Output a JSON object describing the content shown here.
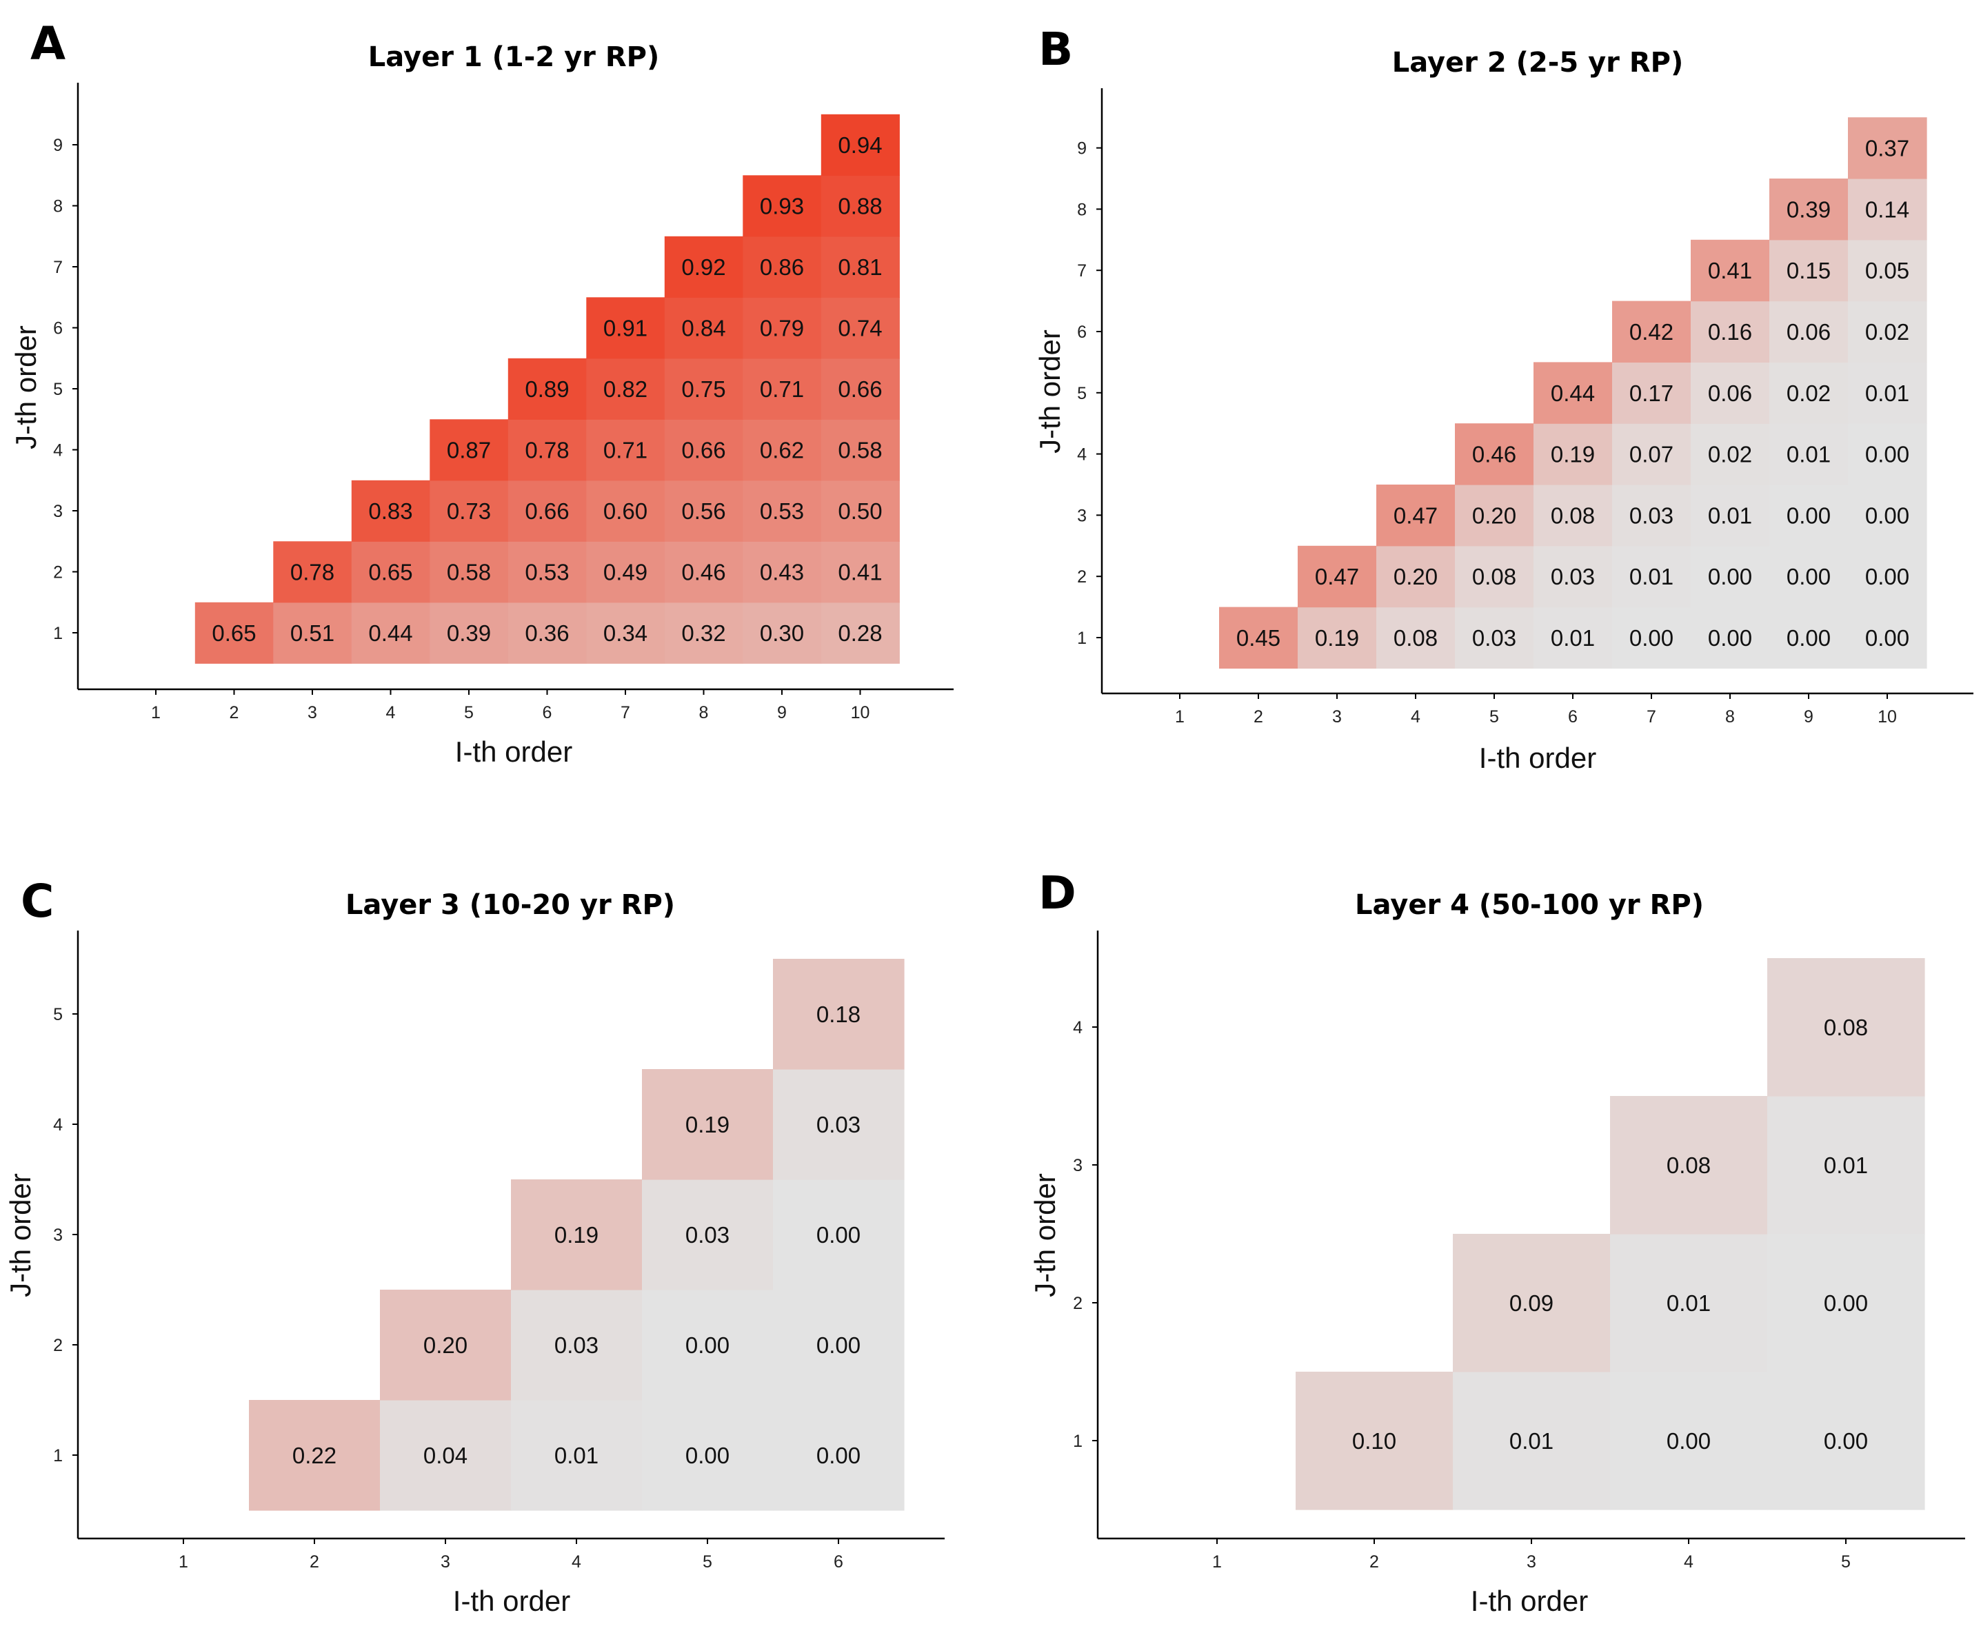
{
  "chart_data": [
    {
      "type": "heatmap",
      "panel": "A",
      "title": "Layer 1 (1-2 yr RP)",
      "xlabel": "I-th order",
      "ylabel": "J-th order",
      "x_ticks": [
        "1",
        "2",
        "3",
        "4",
        "5",
        "6",
        "7",
        "8",
        "9",
        "10"
      ],
      "y_ticks": [
        "1",
        "2",
        "3",
        "4",
        "5",
        "6",
        "7",
        "8",
        "9"
      ],
      "rows": [
        {
          "j": 1,
          "start_i": 2,
          "values": [
            "0.65",
            "0.51",
            "0.44",
            "0.39",
            "0.36",
            "0.34",
            "0.32",
            "0.30",
            "0.28"
          ]
        },
        {
          "j": 2,
          "start_i": 3,
          "values": [
            "0.78",
            "0.65",
            "0.58",
            "0.53",
            "0.49",
            "0.46",
            "0.43",
            "0.41"
          ]
        },
        {
          "j": 3,
          "start_i": 4,
          "values": [
            "0.83",
            "0.73",
            "0.66",
            "0.60",
            "0.56",
            "0.53",
            "0.50"
          ]
        },
        {
          "j": 4,
          "start_i": 5,
          "values": [
            "0.87",
            "0.78",
            "0.71",
            "0.66",
            "0.62",
            "0.58"
          ]
        },
        {
          "j": 5,
          "start_i": 6,
          "values": [
            "0.89",
            "0.82",
            "0.75",
            "0.71",
            "0.66"
          ]
        },
        {
          "j": 6,
          "start_i": 7,
          "values": [
            "0.91",
            "0.84",
            "0.79",
            "0.74"
          ]
        },
        {
          "j": 7,
          "start_i": 8,
          "values": [
            "0.92",
            "0.86",
            "0.81"
          ]
        },
        {
          "j": 8,
          "start_i": 9,
          "values": [
            "0.93",
            "0.88"
          ]
        },
        {
          "j": 9,
          "start_i": 10,
          "values": [
            "0.94"
          ]
        }
      ]
    },
    {
      "type": "heatmap",
      "panel": "B",
      "title": "Layer 2 (2-5 yr RP)",
      "xlabel": "I-th order",
      "ylabel": "J-th order",
      "x_ticks": [
        "1",
        "2",
        "3",
        "4",
        "5",
        "6",
        "7",
        "8",
        "9",
        "10"
      ],
      "y_ticks": [
        "1",
        "2",
        "3",
        "4",
        "5",
        "6",
        "7",
        "8",
        "9"
      ],
      "rows": [
        {
          "j": 1,
          "start_i": 2,
          "values": [
            "0.45",
            "0.19",
            "0.08",
            "0.03",
            "0.01",
            "0.00",
            "0.00",
            "0.00",
            "0.00"
          ]
        },
        {
          "j": 2,
          "start_i": 3,
          "values": [
            "0.47",
            "0.20",
            "0.08",
            "0.03",
            "0.01",
            "0.00",
            "0.00",
            "0.00"
          ]
        },
        {
          "j": 3,
          "start_i": 4,
          "values": [
            "0.47",
            "0.20",
            "0.08",
            "0.03",
            "0.01",
            "0.00",
            "0.00"
          ]
        },
        {
          "j": 4,
          "start_i": 5,
          "values": [
            "0.46",
            "0.19",
            "0.07",
            "0.02",
            "0.01",
            "0.00"
          ]
        },
        {
          "j": 5,
          "start_i": 6,
          "values": [
            "0.44",
            "0.17",
            "0.06",
            "0.02",
            "0.01"
          ]
        },
        {
          "j": 6,
          "start_i": 7,
          "values": [
            "0.42",
            "0.16",
            "0.06",
            "0.02"
          ]
        },
        {
          "j": 7,
          "start_i": 8,
          "values": [
            "0.41",
            "0.15",
            "0.05"
          ]
        },
        {
          "j": 8,
          "start_i": 9,
          "values": [
            "0.39",
            "0.14"
          ]
        },
        {
          "j": 9,
          "start_i": 10,
          "values": [
            "0.37"
          ]
        }
      ]
    },
    {
      "type": "heatmap",
      "panel": "C",
      "title": "Layer 3 (10-20 yr RP)",
      "xlabel": "I-th order",
      "ylabel": "J-th order",
      "x_ticks": [
        "1",
        "2",
        "3",
        "4",
        "5",
        "6"
      ],
      "y_ticks": [
        "1",
        "2",
        "3",
        "4",
        "5"
      ],
      "rows": [
        {
          "j": 1,
          "start_i": 2,
          "values": [
            "0.22",
            "0.04",
            "0.01",
            "0.00",
            "0.00"
          ]
        },
        {
          "j": 2,
          "start_i": 3,
          "values": [
            "0.20",
            "0.03",
            "0.00",
            "0.00"
          ]
        },
        {
          "j": 3,
          "start_i": 4,
          "values": [
            "0.19",
            "0.03",
            "0.00"
          ]
        },
        {
          "j": 4,
          "start_i": 5,
          "values": [
            "0.19",
            "0.03"
          ]
        },
        {
          "j": 5,
          "start_i": 6,
          "values": [
            "0.18"
          ]
        }
      ]
    },
    {
      "type": "heatmap",
      "panel": "D",
      "title": "Layer 4 (50-100 yr RP)",
      "xlabel": "I-th order",
      "ylabel": "J-th order",
      "x_ticks": [
        "1",
        "2",
        "3",
        "4",
        "5"
      ],
      "y_ticks": [
        "1",
        "2",
        "3",
        "4"
      ],
      "rows": [
        {
          "j": 1,
          "start_i": 2,
          "values": [
            "0.10",
            "0.01",
            "0.00",
            "0.00"
          ]
        },
        {
          "j": 2,
          "start_i": 3,
          "values": [
            "0.09",
            "0.01",
            "0.00"
          ]
        },
        {
          "j": 3,
          "start_i": 4,
          "values": [
            "0.08",
            "0.01"
          ]
        },
        {
          "j": 4,
          "start_i": 5,
          "values": [
            "0.08"
          ]
        }
      ]
    }
  ],
  "colors": {
    "low": "#e3e3e3",
    "high": "#ee3a1f",
    "axis": "#000000"
  }
}
